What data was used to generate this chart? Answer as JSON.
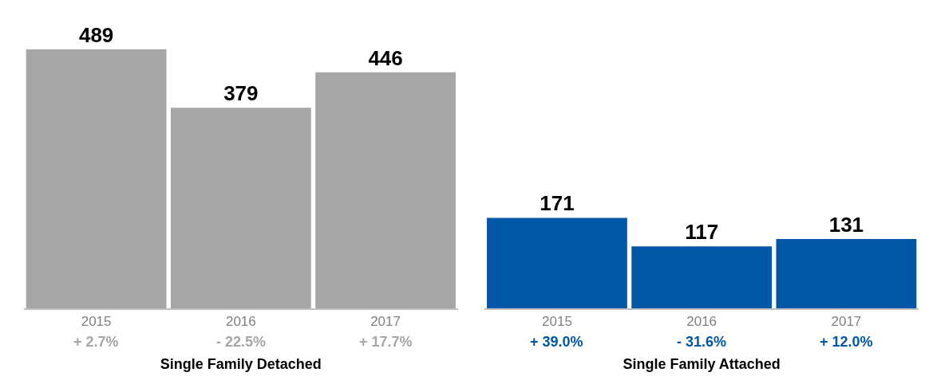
{
  "chart_data": [
    {
      "type": "bar",
      "xlabel": "Single Family Detached",
      "categories": [
        "2015",
        "2016",
        "2017"
      ],
      "values": [
        489,
        379,
        446
      ],
      "color": "#a6a6a6",
      "data_labels": true,
      "tick_labels": "x",
      "annotations": [
        "+ 2.7%",
        "- 22.5%",
        "+ 17.7%"
      ]
    },
    {
      "type": "bar",
      "xlabel": "Single Family Attached",
      "categories": [
        "2015",
        "2016",
        "2017"
      ],
      "values": [
        171,
        117,
        131
      ],
      "color": "#0057a8",
      "data_labels": true,
      "tick_labels": "x",
      "annotations": [
        "+ 39.0%",
        "- 31.6%",
        "+ 12.0%"
      ]
    }
  ]
}
